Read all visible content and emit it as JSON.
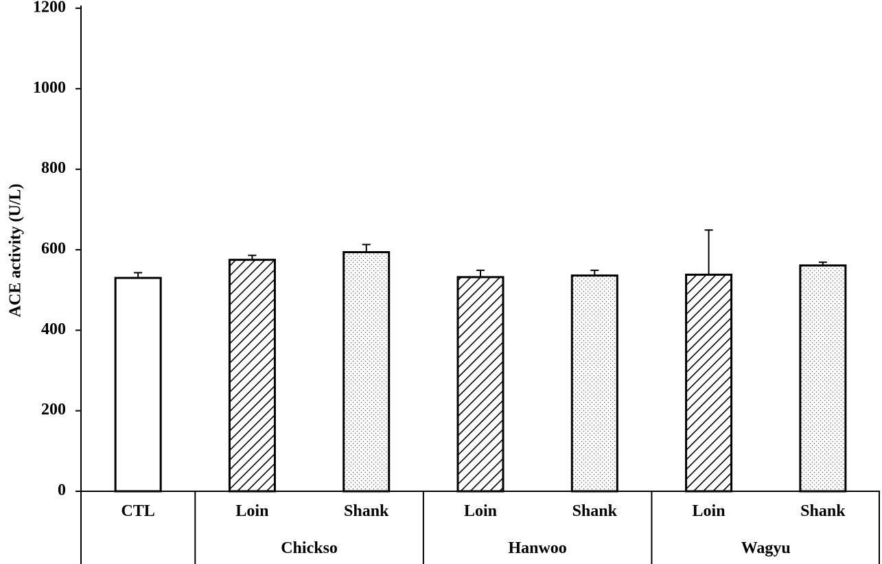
{
  "chart_data": {
    "type": "bar",
    "title": "",
    "ylabel": "ACE activity (U/L)",
    "xlabel": "",
    "ylim": [
      0,
      1200
    ],
    "yticks": [
      0,
      200,
      400,
      600,
      800,
      1000,
      1200
    ],
    "grid": false,
    "legend": "none",
    "bars": [
      {
        "label": "CTL",
        "group": "",
        "value": 530,
        "error": 13,
        "fill": "white"
      },
      {
        "label": "Loin",
        "group": "Chickso",
        "value": 575,
        "error": 11,
        "fill": "hatch"
      },
      {
        "label": "Shank",
        "group": "Chickso",
        "value": 594,
        "error": 19,
        "fill": "dots"
      },
      {
        "label": "Loin",
        "group": "Hanwoo",
        "value": 532,
        "error": 17,
        "fill": "hatch"
      },
      {
        "label": "Shank",
        "group": "Hanwoo",
        "value": 536,
        "error": 13,
        "fill": "dots"
      },
      {
        "label": "Loin",
        "group": "Wagyu",
        "value": 538,
        "error": 111,
        "fill": "hatch"
      },
      {
        "label": "Shank",
        "group": "Wagyu",
        "value": 561,
        "error": 8,
        "fill": "dots"
      }
    ],
    "groups": [
      "Chickso",
      "Hanwoo",
      "Wagyu"
    ]
  },
  "colors": {
    "axis": "#000000",
    "bar_edge": "#000000",
    "bar_fill": "#ffffff"
  }
}
